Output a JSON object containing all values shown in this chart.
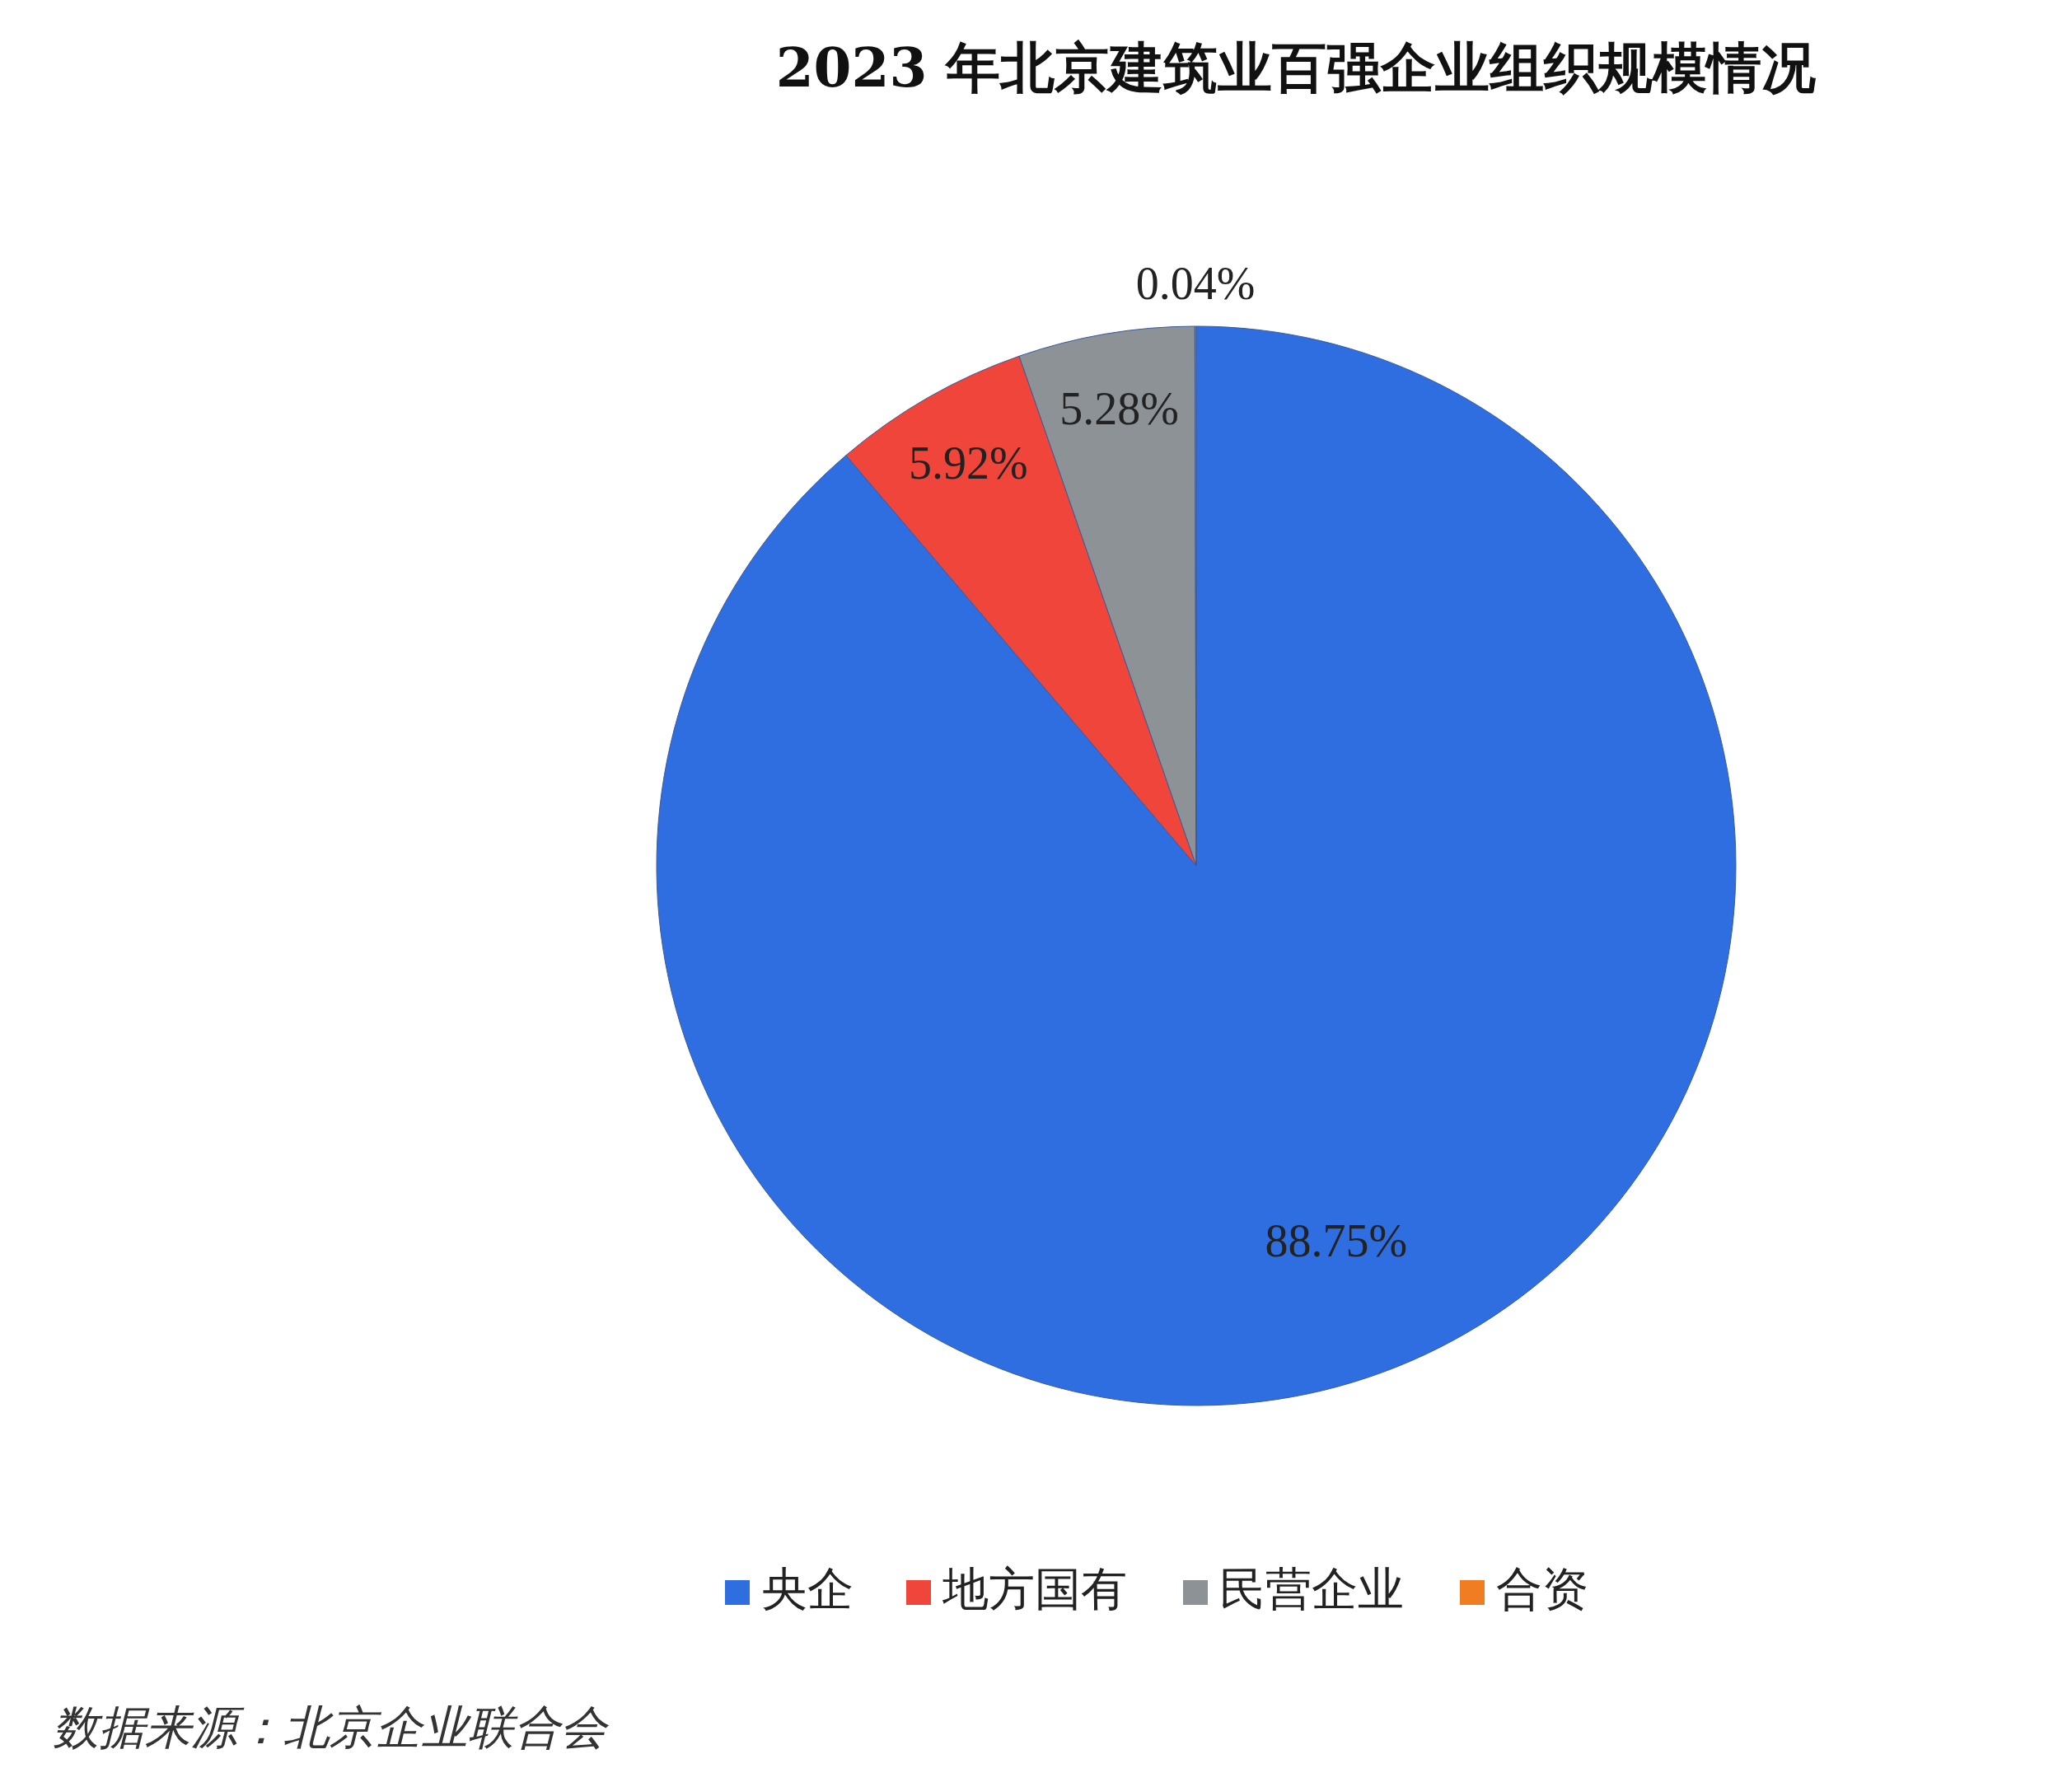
{
  "chart_data": {
    "type": "pie",
    "title": "2023 年北京建筑业百强企业组织规模情况",
    "categories": [
      "央企",
      "地方国有",
      "民营企业",
      "合资"
    ],
    "values": [
      88.75,
      5.92,
      5.28,
      0.04
    ],
    "colors": [
      "#2f6ee0",
      "#f0453a",
      "#8c9296",
      "#f07d22"
    ],
    "value_labels": [
      "88.75%",
      "5.92%",
      "5.28%",
      "0.04%"
    ],
    "legend": "bottom",
    "annotations": [
      "数据来源：北京企业联合会"
    ]
  }
}
